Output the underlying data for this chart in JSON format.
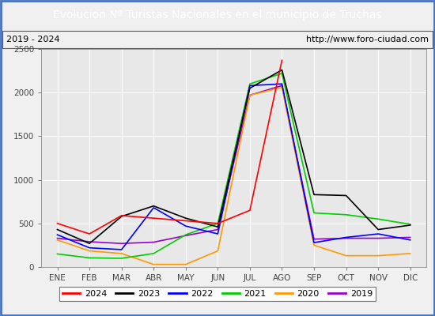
{
  "title": "Evolucion Nº Turistas Nacionales en el municipio de Truchas",
  "subtitle_left": "2019 - 2024",
  "subtitle_right": "http://www.foro-ciudad.com",
  "months": [
    "ENE",
    "FEB",
    "MAR",
    "ABR",
    "MAY",
    "JUN",
    "JUL",
    "AGO",
    "SEP",
    "OCT",
    "NOV",
    "DIC"
  ],
  "ylim": [
    0,
    2500
  ],
  "yticks": [
    0,
    500,
    1000,
    1500,
    2000,
    2500
  ],
  "series": {
    "2024": {
      "color": "#ff0000",
      "linewidth": 1.2,
      "values": [
        500,
        380,
        590,
        560,
        530,
        500,
        650,
        2370,
        null,
        null,
        null,
        null
      ]
    },
    "2023": {
      "color": "#000000",
      "linewidth": 1.2,
      "values": [
        430,
        270,
        580,
        700,
        560,
        460,
        2050,
        2260,
        830,
        820,
        430,
        480
      ]
    },
    "2022": {
      "color": "#0000ff",
      "linewidth": 1.2,
      "values": [
        370,
        220,
        200,
        680,
        470,
        380,
        2080,
        2100,
        280,
        340,
        380,
        310
      ]
    },
    "2021": {
      "color": "#00cc00",
      "linewidth": 1.2,
      "values": [
        150,
        105,
        100,
        155,
        370,
        500,
        2100,
        2220,
        620,
        600,
        550,
        490
      ]
    },
    "2020": {
      "color": "#ff9900",
      "linewidth": 1.2,
      "values": [
        310,
        185,
        155,
        30,
        30,
        185,
        1970,
        2060,
        250,
        130,
        130,
        155
      ]
    },
    "2019": {
      "color": "#9900cc",
      "linewidth": 1.2,
      "values": [
        330,
        290,
        270,
        285,
        360,
        430,
        1970,
        2080,
        320,
        330,
        330,
        340
      ]
    }
  },
  "title_bg_color": "#4472c4",
  "title_font_color": "#ffffff",
  "plot_bg_color": "#e8e8e8",
  "grid_color": "#ffffff",
  "fig_bg_color": "#f0f0f0",
  "subtitle_font_size": 8,
  "title_font_size": 10
}
